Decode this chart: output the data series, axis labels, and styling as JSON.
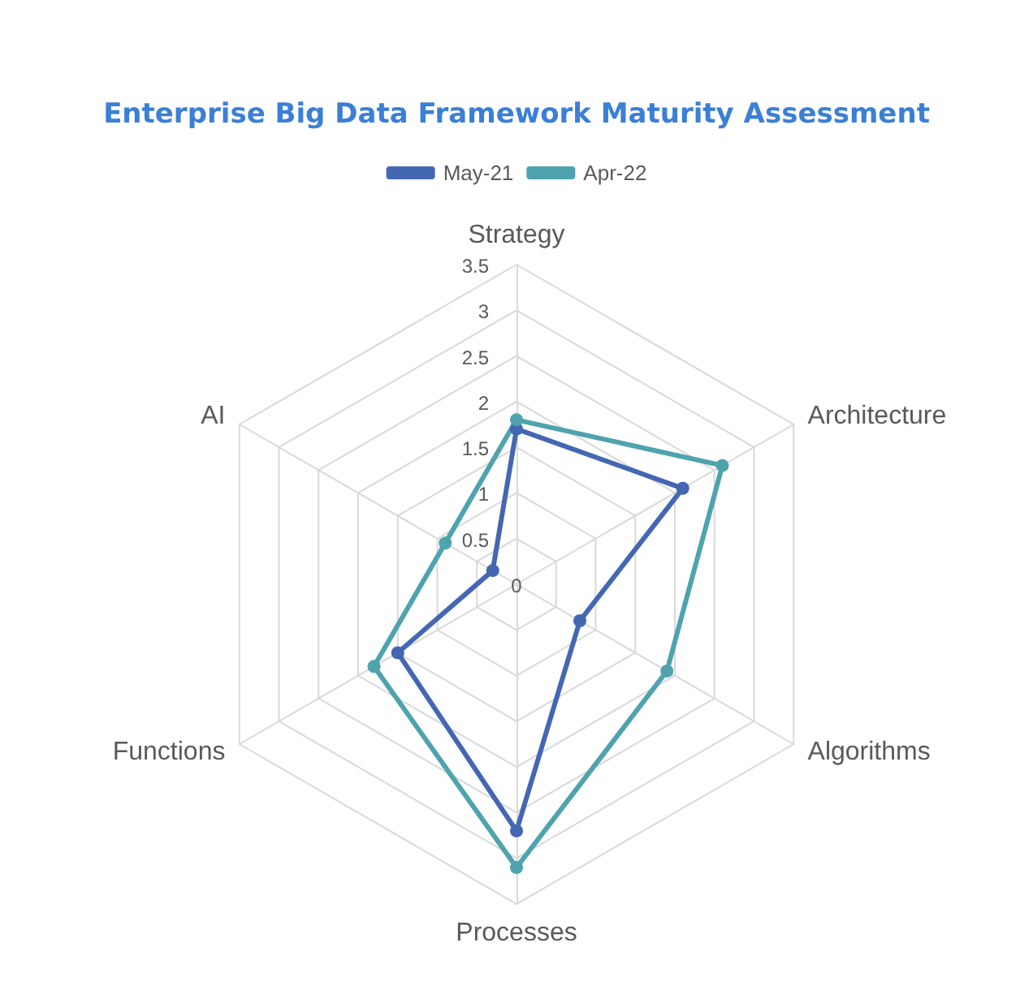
{
  "chart_data": {
    "type": "radar",
    "title": "Enterprise Big Data Framework Maturity Assessment",
    "categories": [
      "Strategy",
      "Architecture",
      "Algorithms",
      "Processes",
      "Functions",
      "AI"
    ],
    "series": [
      {
        "name": "May-21",
        "color": "#4467b2",
        "values": [
          1.7,
          2.1,
          0.8,
          2.7,
          1.5,
          0.3
        ]
      },
      {
        "name": "Apr-22",
        "color": "#4ea3ae",
        "values": [
          1.8,
          2.6,
          1.9,
          3.1,
          1.8,
          0.9
        ]
      }
    ],
    "ylim": [
      0,
      3.5
    ],
    "yticks": [
      0,
      0.5,
      1,
      1.5,
      2,
      2.5,
      3,
      3.5
    ],
    "grid": true,
    "legend": "top",
    "marker": "circle"
  }
}
